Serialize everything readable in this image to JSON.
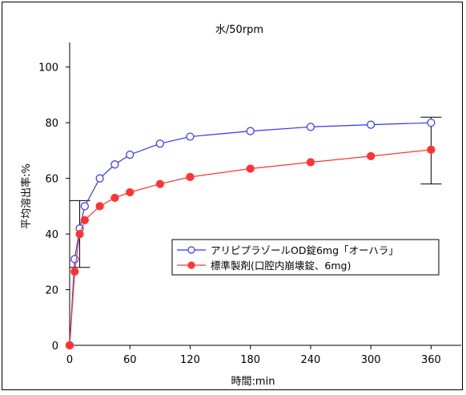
{
  "chart_data": {
    "type": "line",
    "title": "水/50rpm",
    "xlabel": "時間:min",
    "ylabel": "平均溶出率:%",
    "xlim": [
      0,
      390
    ],
    "ylim": [
      0,
      110
    ],
    "xticks": [
      0,
      60,
      120,
      180,
      240,
      300,
      360
    ],
    "yticks": [
      0,
      20,
      40,
      60,
      80,
      100
    ],
    "grid": false,
    "legend_position": "middle-right",
    "x": [
      0,
      5,
      10,
      15,
      30,
      45,
      60,
      90,
      120,
      180,
      240,
      300,
      360
    ],
    "series": [
      {
        "name": "アリピプラゾールOD錠6mg「オーハラ」",
        "color": "#3333ff",
        "marker": "open-circle",
        "values": [
          0,
          31,
          42,
          50,
          60,
          65,
          68.5,
          72.5,
          75,
          77,
          78.5,
          79.3,
          80
        ]
      },
      {
        "name": "標準製剤(口腔内崩壊錠、6mg)",
        "color": "#ff3333",
        "marker": "filled-circle",
        "values": [
          0,
          26.5,
          40,
          45,
          50,
          53,
          55,
          58,
          60.5,
          63.5,
          65.8,
          68,
          70.3
        ]
      }
    ],
    "error_bars": [
      {
        "x": 10,
        "low": 28,
        "high": 52
      },
      {
        "x": 360,
        "low": 58,
        "high": 82
      }
    ]
  }
}
